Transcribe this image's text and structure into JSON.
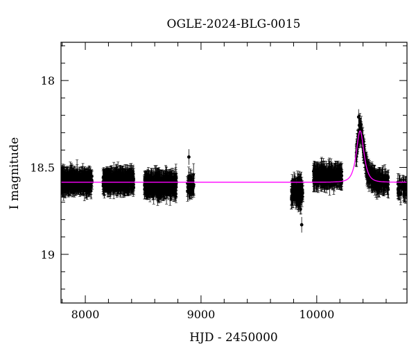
{
  "chart_data": {
    "type": "scatter",
    "title": "OGLE-2024-BLG-0015",
    "xlabel": "HJD - 2450000",
    "ylabel": "I magnitude",
    "xlim": [
      7790,
      10780
    ],
    "ylim": [
      19.28,
      17.78
    ],
    "y_inverted": true,
    "grid": false,
    "xticks": {
      "major": [
        8000,
        9000,
        10000
      ],
      "labels": [
        "8000",
        "9000",
        "10000"
      ]
    },
    "yticks": {
      "major": [
        18.0,
        18.5,
        19.0
      ],
      "labels": [
        "18",
        "18.5",
        "19"
      ]
    },
    "observing_seasons": [
      {
        "start": 7795,
        "end": 8060,
        "mean_mag": 18.58,
        "scatter": 0.05,
        "count": 520
      },
      {
        "start": 8150,
        "end": 8420,
        "mean_mag": 18.58,
        "scatter": 0.05,
        "count": 520
      },
      {
        "start": 8510,
        "end": 8790,
        "mean_mag": 18.6,
        "scatter": 0.055,
        "count": 560
      },
      {
        "start": 8880,
        "end": 8940,
        "mean_mag": 18.6,
        "scatter": 0.05,
        "count": 60
      },
      {
        "start": 9780,
        "end": 9880,
        "mean_mag": 18.64,
        "scatter": 0.07,
        "count": 160
      },
      {
        "start": 9970,
        "end": 10220,
        "mean_mag": 18.55,
        "scatter": 0.055,
        "count": 330
      },
      {
        "start": 10340,
        "end": 10620,
        "mean_mag": null,
        "scatter": 0.05,
        "count": 360
      },
      {
        "start": 10700,
        "end": 10780,
        "mean_mag": 18.62,
        "scatter": 0.05,
        "count": 50
      }
    ],
    "typical_error": 0.045,
    "series": [
      {
        "kind": "model",
        "color": "#ff00ff",
        "baseline_mag": 18.585,
        "peak_time": 10375,
        "peak_mag": 18.29,
        "timescale_days": 38
      }
    ],
    "highlight_points": [
      {
        "x": 10362,
        "y": 18.21
      },
      {
        "x": 9870,
        "y": 18.83
      },
      {
        "x": 8895,
        "y": 18.44
      }
    ],
    "colors": {
      "data": "#000000",
      "model": "#ff00ff",
      "axes": "#000000"
    }
  }
}
